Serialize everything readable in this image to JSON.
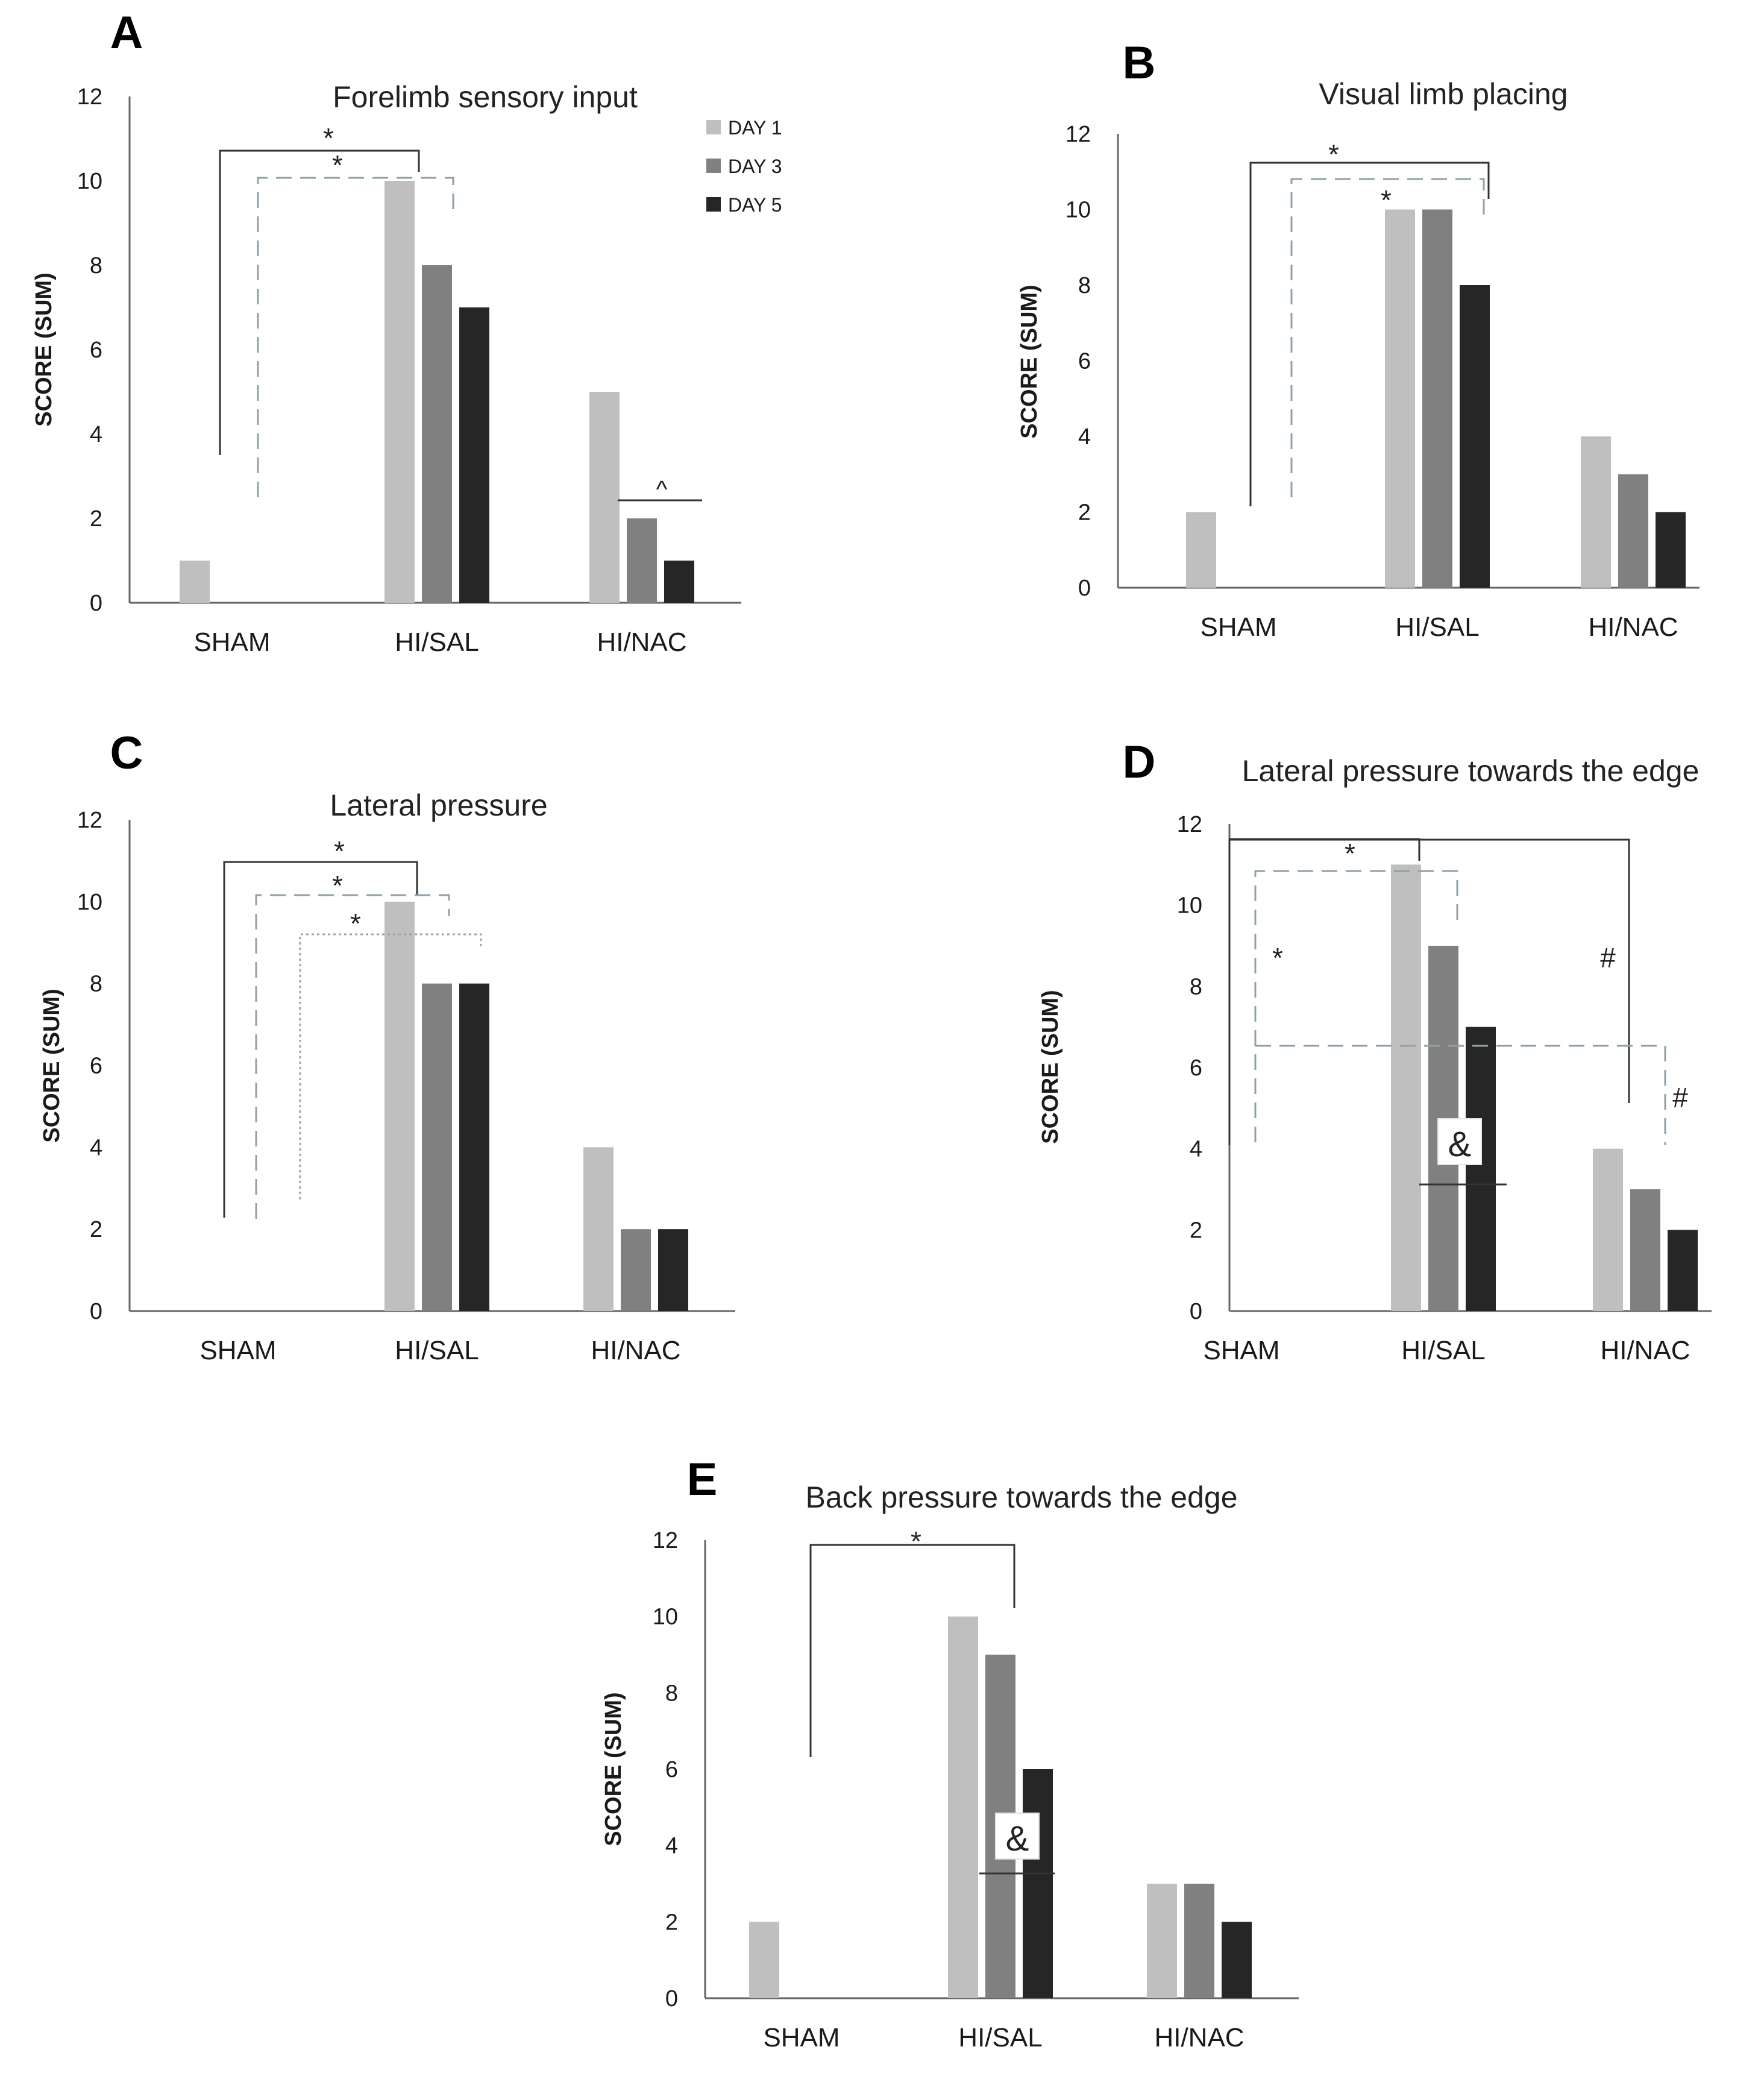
{
  "legend": {
    "items": [
      {
        "label": "DAY 1",
        "color": "#bfbfbf"
      },
      {
        "label": "DAY 3",
        "color": "#808080"
      },
      {
        "label": "DAY 5",
        "color": "#262626"
      }
    ]
  },
  "chart_data": [
    {
      "letter": "A",
      "type": "bar",
      "title": "Forelimb sensory input",
      "ylabel": "SCORE (SUM)",
      "xlabel": "",
      "ylim": [
        0,
        12
      ],
      "yticks": [
        0,
        2,
        4,
        6,
        8,
        10,
        12
      ],
      "categories": [
        "SHAM",
        "HI/SAL",
        "HI/NAC"
      ],
      "series": [
        {
          "name": "DAY 1",
          "values": [
            1,
            10,
            5
          ]
        },
        {
          "name": "DAY 3",
          "values": [
            0,
            8,
            2
          ]
        },
        {
          "name": "DAY 5",
          "values": [
            0,
            7,
            1
          ]
        }
      ],
      "annotations": [
        {
          "symbol": "*",
          "from": "SHAM",
          "to": "HI/SAL DAY 1",
          "style": "solid"
        },
        {
          "symbol": "*",
          "from": "SHAM",
          "to": "HI/SAL DAY 3",
          "style": "dashed"
        },
        {
          "symbol": "^",
          "over": "HI/NAC DAY 3 - DAY 5",
          "style": "solid"
        }
      ]
    },
    {
      "letter": "B",
      "type": "bar",
      "title": "Visual limb placing",
      "ylabel": "SCORE (SUM)",
      "xlabel": "",
      "ylim": [
        0,
        12
      ],
      "yticks": [
        0,
        2,
        4,
        6,
        8,
        10,
        12
      ],
      "categories": [
        "SHAM",
        "HI/SAL",
        "HI/NAC"
      ],
      "series": [
        {
          "name": "DAY 1",
          "values": [
            2,
            10,
            4
          ]
        },
        {
          "name": "DAY 3",
          "values": [
            0,
            10,
            3
          ]
        },
        {
          "name": "DAY 5",
          "values": [
            0,
            8,
            2
          ]
        }
      ],
      "annotations": [
        {
          "symbol": "*",
          "from": "SHAM",
          "to": "HI/SAL DAY 3",
          "style": "solid"
        },
        {
          "symbol": "*",
          "from": "SHAM",
          "to": "HI/SAL DAY 5",
          "style": "dashed"
        }
      ]
    },
    {
      "letter": "C",
      "type": "bar",
      "title": "Lateral pressure",
      "ylabel": "SCORE (SUM)",
      "xlabel": "",
      "ylim": [
        0,
        12
      ],
      "yticks": [
        0,
        2,
        4,
        6,
        8,
        10,
        12
      ],
      "categories": [
        "SHAM",
        "HI/SAL",
        "HI/NAC"
      ],
      "series": [
        {
          "name": "DAY 1",
          "values": [
            0,
            10,
            4
          ]
        },
        {
          "name": "DAY 3",
          "values": [
            0,
            8,
            2
          ]
        },
        {
          "name": "DAY 5",
          "values": [
            0,
            8,
            2
          ]
        }
      ],
      "annotations": [
        {
          "symbol": "*",
          "from": "SHAM",
          "to": "HI/SAL DAY 1",
          "style": "solid"
        },
        {
          "symbol": "*",
          "from": "SHAM",
          "to": "HI/SAL DAY 3",
          "style": "dashed"
        },
        {
          "symbol": "*",
          "from": "SHAM",
          "to": "HI/SAL DAY 5",
          "style": "dotted"
        }
      ]
    },
    {
      "letter": "D",
      "type": "bar",
      "title": "Lateral pressure towards the edge",
      "ylabel": "SCORE (SUM)",
      "xlabel": "",
      "ylim": [
        0,
        12
      ],
      "yticks": [
        0,
        2,
        4,
        6,
        8,
        10,
        12
      ],
      "categories": [
        "SHAM",
        "HI/SAL",
        "HI/NAC"
      ],
      "series": [
        {
          "name": "DAY 1",
          "values": [
            0,
            11,
            4
          ]
        },
        {
          "name": "DAY 3",
          "values": [
            0,
            9,
            3
          ]
        },
        {
          "name": "DAY 5",
          "values": [
            0,
            7,
            2
          ]
        }
      ],
      "annotations": [
        {
          "symbol": "*",
          "from": "SHAM",
          "to": "HI/SAL DAY 1",
          "style": "solid"
        },
        {
          "symbol": "*",
          "from": "SHAM",
          "to": "HI/SAL DAY 3",
          "style": "dashed"
        },
        {
          "symbol": "#",
          "from": "SHAM",
          "to": "HI/NAC",
          "style": "solid"
        },
        {
          "symbol": "#",
          "from": "SHAM",
          "to": "HI/NAC DAY 3",
          "style": "dashed"
        },
        {
          "symbol": "&",
          "over": "HI/SAL DAY 3 - DAY 5",
          "style": "solid"
        }
      ]
    },
    {
      "letter": "E",
      "type": "bar",
      "title": "Back pressure towards the edge",
      "ylabel": "SCORE (SUM)",
      "xlabel": "",
      "ylim": [
        0,
        12
      ],
      "yticks": [
        0,
        2,
        4,
        6,
        8,
        10,
        12
      ],
      "categories": [
        "SHAM",
        "HI/SAL",
        "HI/NAC"
      ],
      "series": [
        {
          "name": "DAY 1",
          "values": [
            2,
            10,
            3
          ]
        },
        {
          "name": "DAY 3",
          "values": [
            0,
            9,
            3
          ]
        },
        {
          "name": "DAY 5",
          "values": [
            0,
            6,
            2
          ]
        }
      ],
      "annotations": [
        {
          "symbol": "*",
          "from": "SHAM",
          "to": "HI/SAL DAY 3",
          "style": "solid"
        },
        {
          "symbol": "&",
          "over": "HI/SAL DAY 3 - DAY 5",
          "style": "solid"
        }
      ]
    }
  ]
}
